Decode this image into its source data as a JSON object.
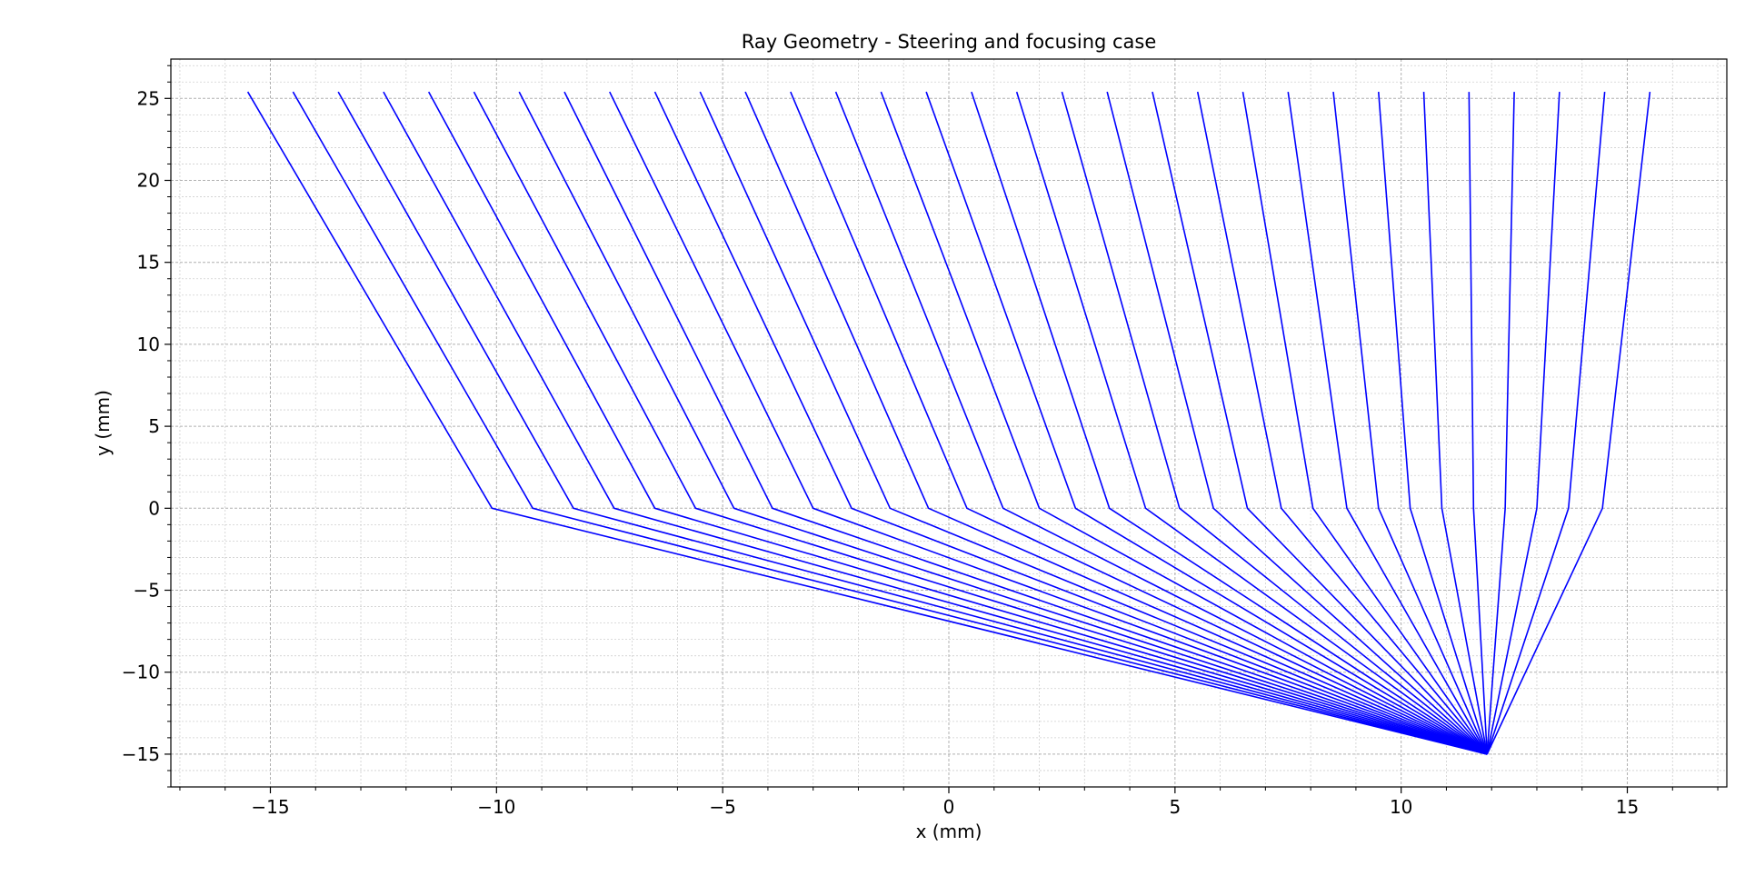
{
  "chart_data": {
    "type": "line",
    "title": "Ray Geometry - Steering and focusing case",
    "xlabel": "x (mm)",
    "ylabel": "y (mm)",
    "xlim": [
      -17.2,
      17.2
    ],
    "ylim": [
      -17.0,
      27.4
    ],
    "x_ticks": [
      -15,
      -10,
      -5,
      0,
      5,
      10,
      15
    ],
    "x_tick_labels": [
      "−15",
      "−10",
      "−5",
      "0",
      "5",
      "10",
      "15"
    ],
    "y_ticks": [
      -15,
      -10,
      -5,
      0,
      5,
      10,
      15,
      20,
      25
    ],
    "y_tick_labels": [
      "−15",
      "−10",
      "−5",
      "0",
      "5",
      "10",
      "15",
      "20",
      "25"
    ],
    "grid": true,
    "minor_grid": true,
    "line_color": "#0000ff",
    "focus_point": {
      "x": 11.9,
      "y": -15.0
    },
    "source_y": 25.4,
    "interface_y": 0.0,
    "rays": [
      {
        "x_source": -15.5,
        "x_interface": -10.1
      },
      {
        "x_source": -14.5,
        "x_interface": -9.2
      },
      {
        "x_source": -13.5,
        "x_interface": -8.3
      },
      {
        "x_source": -12.5,
        "x_interface": -7.4
      },
      {
        "x_source": -11.5,
        "x_interface": -6.5
      },
      {
        "x_source": -10.5,
        "x_interface": -5.6
      },
      {
        "x_source": -9.5,
        "x_interface": -4.75
      },
      {
        "x_source": -8.5,
        "x_interface": -3.9
      },
      {
        "x_source": -7.5,
        "x_interface": -3.0
      },
      {
        "x_source": -6.5,
        "x_interface": -2.15
      },
      {
        "x_source": -5.5,
        "x_interface": -1.3
      },
      {
        "x_source": -4.5,
        "x_interface": -0.45
      },
      {
        "x_source": -3.5,
        "x_interface": 0.4
      },
      {
        "x_source": -2.5,
        "x_interface": 1.2
      },
      {
        "x_source": -1.5,
        "x_interface": 2.0
      },
      {
        "x_source": -0.5,
        "x_interface": 2.8
      },
      {
        "x_source": 0.5,
        "x_interface": 3.55
      },
      {
        "x_source": 1.5,
        "x_interface": 4.35
      },
      {
        "x_source": 2.5,
        "x_interface": 5.1
      },
      {
        "x_source": 3.5,
        "x_interface": 5.85
      },
      {
        "x_source": 4.5,
        "x_interface": 6.6
      },
      {
        "x_source": 5.5,
        "x_interface": 7.35
      },
      {
        "x_source": 6.5,
        "x_interface": 8.05
      },
      {
        "x_source": 7.5,
        "x_interface": 8.8
      },
      {
        "x_source": 8.5,
        "x_interface": 9.5
      },
      {
        "x_source": 9.5,
        "x_interface": 10.2
      },
      {
        "x_source": 10.5,
        "x_interface": 10.9
      },
      {
        "x_source": 11.5,
        "x_interface": 11.6
      },
      {
        "x_source": 12.5,
        "x_interface": 12.3
      },
      {
        "x_source": 13.5,
        "x_interface": 13.0
      },
      {
        "x_source": 14.5,
        "x_interface": 13.7
      },
      {
        "x_source": 15.5,
        "x_interface": 14.45
      }
    ]
  }
}
